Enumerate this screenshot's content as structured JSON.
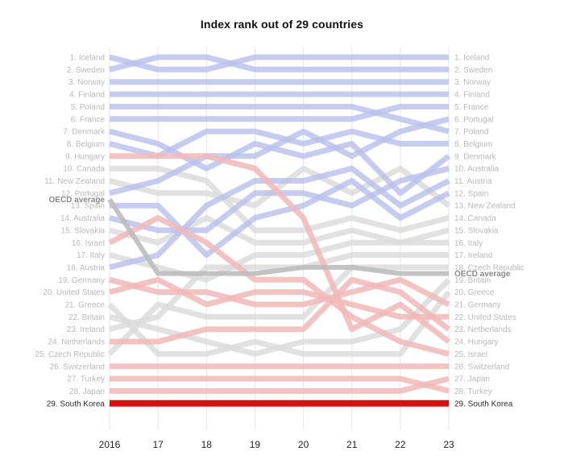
{
  "title": "Index rank out of 29 countries",
  "x_labels": [
    "2016",
    "17",
    "18",
    "19",
    "20",
    "21",
    "22",
    "23"
  ],
  "colors": {
    "blue": "#b8bfeb",
    "gray": "#dcdcdc",
    "red": "#f1b8b8",
    "oecd": "#bdbdbd",
    "highlight": "#d80f0f",
    "label": "#b9b9b9",
    "label_dark": "#2a2a2a",
    "grid": "#e6e6e6"
  },
  "chart_data": {
    "type": "line",
    "title": "Index rank out of 29 countries",
    "x": [
      "2016",
      "17",
      "18",
      "19",
      "20",
      "21",
      "22",
      "23"
    ],
    "ylim": [
      30,
      1
    ],
    "left_labels": [
      "1. Iceland",
      "2. Sweden",
      "3. Norway",
      "4. Finland",
      "5. Poland",
      "6. France",
      "7. Denmark",
      "8. Belgium",
      "9. Hungary",
      "10. Canada",
      "11. New Zealand",
      "12. Portugal",
      "OECD average",
      "13. Spain",
      "14. Australia",
      "15. Slovakia",
      "16. Israel",
      "17. Italy",
      "18. Austria",
      "19. Germany",
      "20. United States",
      "21. Greece",
      "22. Britain",
      "23. Ireland",
      "24. Netherlands",
      "25. Czech Republic",
      "26. Switzerland",
      "27. Turkey",
      "28. Japan",
      "29. South Korea"
    ],
    "right_labels": [
      "1. Iceland",
      "2. Sweden",
      "3. Norway",
      "4. Finland",
      "5. France",
      "6. Portugal",
      "7. Poland",
      "8. Belgium",
      "9. Denmark",
      "10. Australia",
      "11. Austria",
      "12. Spain",
      "13. New Zealand",
      "14. Canada",
      "15. Slovakia",
      "16. Italy",
      "17. Ireland",
      "18. Czech Republic",
      "OECD average",
      "19. Britain",
      "20. Greece",
      "21. Germany",
      "22. United States",
      "23. Netherlands",
      "24. Hungary",
      "25. Israel",
      "26. Switzerland",
      "27. Japan",
      "28. Turkey",
      "29. South Korea"
    ],
    "series": [
      {
        "name": "Iceland",
        "group": "blue",
        "values": [
          1,
          2,
          2,
          1,
          1,
          1,
          1,
          1
        ]
      },
      {
        "name": "Sweden",
        "group": "blue",
        "values": [
          2,
          1,
          1,
          2,
          2,
          2,
          2,
          2
        ]
      },
      {
        "name": "Norway",
        "group": "blue",
        "values": [
          3,
          3,
          3,
          3,
          3,
          3,
          3,
          3
        ]
      },
      {
        "name": "Finland",
        "group": "blue",
        "values": [
          4,
          4,
          4,
          4,
          4,
          4,
          4,
          4
        ]
      },
      {
        "name": "Poland",
        "group": "blue",
        "values": [
          5,
          5,
          5,
          5,
          5,
          5,
          6,
          7
        ]
      },
      {
        "name": "France",
        "group": "blue",
        "values": [
          6,
          6,
          6,
          6,
          6,
          6,
          5,
          5
        ]
      },
      {
        "name": "Denmark",
        "group": "blue",
        "values": [
          7,
          8,
          10,
          8,
          9,
          8,
          12,
          9
        ]
      },
      {
        "name": "Belgium",
        "group": "blue",
        "values": [
          8,
          9,
          7,
          7,
          8,
          7,
          8,
          8
        ]
      },
      {
        "name": "Portugal",
        "group": "blue",
        "values": [
          12,
          11,
          9,
          9,
          7,
          9,
          7,
          6
        ]
      },
      {
        "name": "Australia",
        "group": "blue",
        "values": [
          14,
          15,
          15,
          12,
          12,
          13,
          11,
          10
        ]
      },
      {
        "name": "Austria",
        "group": "blue",
        "values": [
          18,
          17,
          13,
          11,
          11,
          10,
          13,
          11
        ]
      },
      {
        "name": "Spain",
        "group": "blue",
        "values": [
          13,
          13,
          17,
          14,
          13,
          11,
          14,
          12
        ]
      },
      {
        "name": "Hungary",
        "group": "red",
        "values": [
          9,
          9,
          9,
          10,
          14,
          23,
          21,
          24
        ]
      },
      {
        "name": "Israel",
        "group": "red",
        "values": [
          16,
          14,
          16,
          19,
          19,
          22,
          24,
          25
        ]
      },
      {
        "name": "Germany",
        "group": "red",
        "values": [
          19,
          20,
          20,
          21,
          21,
          20,
          19,
          21
        ]
      },
      {
        "name": "United States",
        "group": "red",
        "values": [
          20,
          19,
          21,
          20,
          20,
          21,
          22,
          22
        ]
      },
      {
        "name": "Netherlands",
        "group": "red",
        "values": [
          24,
          24,
          23,
          23,
          23,
          19,
          20,
          23
        ]
      },
      {
        "name": "Switzerland",
        "group": "red",
        "values": [
          26,
          26,
          26,
          26,
          26,
          26,
          26,
          26
        ]
      },
      {
        "name": "Turkey",
        "group": "red",
        "values": [
          27,
          27,
          27,
          27,
          27,
          27,
          27,
          28
        ]
      },
      {
        "name": "Japan",
        "group": "red",
        "values": [
          28,
          28,
          28,
          28,
          28,
          28,
          28,
          27
        ]
      },
      {
        "name": "New Zealand",
        "group": "gray",
        "values": [
          11,
          12,
          12,
          13,
          10,
          12,
          10,
          13
        ]
      },
      {
        "name": "Canada",
        "group": "gray",
        "values": [
          10,
          10,
          11,
          15,
          15,
          14,
          15,
          14
        ]
      },
      {
        "name": "Slovakia",
        "group": "gray",
        "values": [
          15,
          16,
          14,
          16,
          16,
          15,
          16,
          15
        ]
      },
      {
        "name": "Italy",
        "group": "gray",
        "values": [
          17,
          18,
          19,
          17,
          17,
          16,
          16,
          16
        ]
      },
      {
        "name": "Ireland",
        "group": "gray",
        "values": [
          23,
          22,
          18,
          18,
          18,
          17,
          17,
          17
        ]
      },
      {
        "name": "Czech Republic",
        "group": "gray",
        "values": [
          25,
          21,
          22,
          22,
          22,
          18,
          18,
          18
        ]
      },
      {
        "name": "Britain",
        "group": "gray",
        "values": [
          22,
          23,
          24,
          25,
          24,
          24,
          23,
          19
        ]
      },
      {
        "name": "Greece",
        "group": "gray",
        "values": [
          21,
          25,
          25,
          24,
          25,
          25,
          25,
          20
        ]
      },
      {
        "name": "OECD average",
        "group": "oecd",
        "values": [
          12.5,
          18.5,
          18.5,
          18.5,
          18,
          18,
          18.5,
          18.5
        ]
      },
      {
        "name": "South Korea",
        "group": "highlight",
        "values": [
          29,
          29,
          29,
          29,
          29,
          29,
          29,
          29
        ]
      }
    ]
  }
}
